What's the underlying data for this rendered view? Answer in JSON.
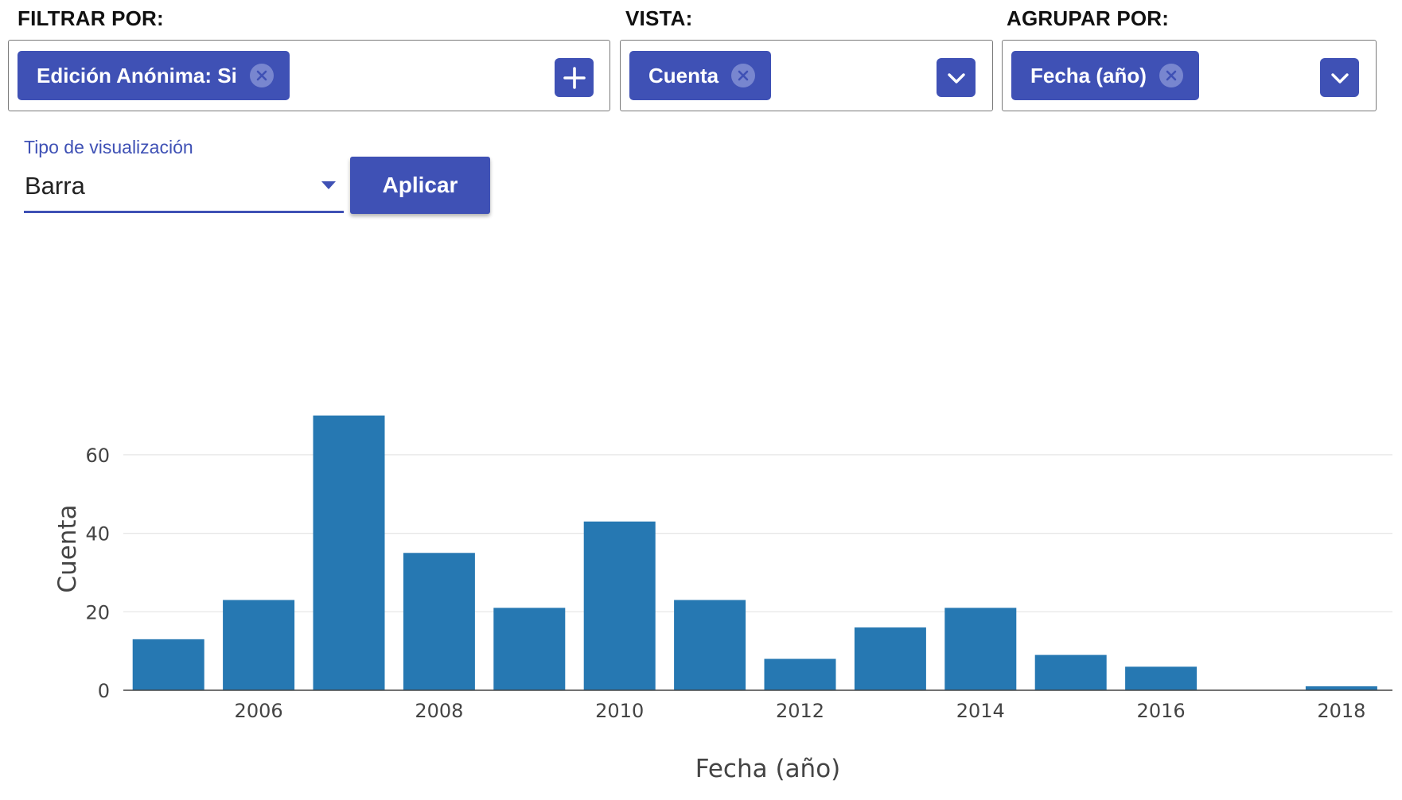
{
  "filters": {
    "filter_by": {
      "label": "FILTRAR POR:",
      "chip": "Edición Anónima: Si",
      "add_icon": "plus-icon"
    },
    "view": {
      "label": "VISTA:",
      "chip": "Cuenta",
      "dropdown_icon": "chevron-down-icon"
    },
    "group_by": {
      "label": "AGRUPAR POR:",
      "chip": "Fecha (año)",
      "dropdown_icon": "chevron-down-icon"
    }
  },
  "visualization": {
    "label": "Tipo de visualización",
    "value": "Barra",
    "apply_label": "Aplicar"
  },
  "colors": {
    "accent": "#3f51b5",
    "bar": "#2678b2"
  },
  "chart_data": {
    "type": "bar",
    "x": [
      2005,
      2006,
      2007,
      2008,
      2009,
      2010,
      2011,
      2012,
      2013,
      2014,
      2015,
      2016,
      2017,
      2018
    ],
    "values": [
      13,
      23,
      70,
      35,
      21,
      43,
      23,
      8,
      16,
      21,
      9,
      6,
      0,
      1
    ],
    "xlabel": "Fecha (año)",
    "ylabel": "Cuenta",
    "xticks": [
      "2006",
      "2008",
      "2010",
      "2012",
      "2014",
      "2016",
      "2018"
    ],
    "yticks": [
      "0",
      "20",
      "40",
      "60"
    ],
    "ylim": [
      0,
      72
    ],
    "grid": true,
    "legend": "none"
  }
}
